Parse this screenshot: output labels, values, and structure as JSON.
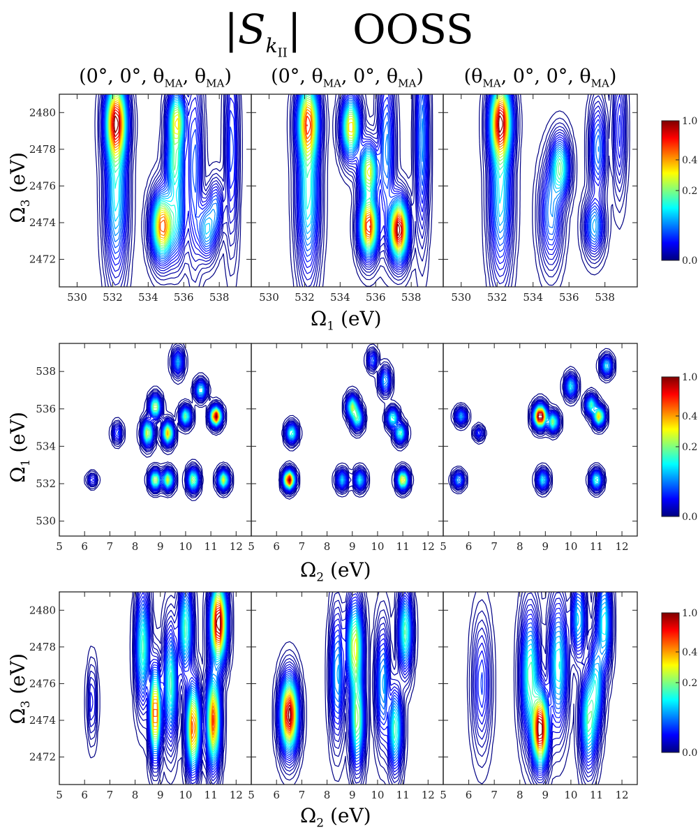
{
  "title": {
    "symbol": "S",
    "sub_k": "k",
    "sub_II": "II",
    "method": "OOSS"
  },
  "column_titles": [
    {
      "pre": "(0°, 0°, θ",
      "s1": "MA",
      "mid": ", θ",
      "s2": "MA",
      "post": ")"
    },
    {
      "pre": "(0°, θ",
      "s1": "MA",
      "mid": ", 0°, θ",
      "s2": "MA",
      "post": ")"
    },
    {
      "pre": "(θ",
      "s1": "MA",
      "mid": ", 0°, 0°, θ",
      "s2": "MA",
      "post": ")"
    }
  ],
  "axis_labels": {
    "row1_x": {
      "sym": "Ω",
      "sub": "1",
      "unit": " (eV)"
    },
    "row2_x": {
      "sym": "Ω",
      "sub": "2",
      "unit": " (eV)"
    },
    "row3_x": {
      "sym": "Ω",
      "sub": "2",
      "unit": " (eV)"
    },
    "row1_y": {
      "sym": "Ω",
      "sub": "3",
      "unit": " (eV)"
    },
    "row2_y": {
      "sym": "Ω",
      "sub": "1",
      "unit": " (eV)"
    },
    "row3_y": {
      "sym": "Ω",
      "sub": "3",
      "unit": " (eV)"
    }
  },
  "chart_data": {
    "type": "heatmap",
    "colormap": [
      "#00007f",
      "#0000ff",
      "#007fff",
      "#00ffff",
      "#7fff7f",
      "#ffff00",
      "#ff7f00",
      "#ff0000",
      "#7f0000"
    ],
    "colorbar_ticks": [
      "1.0",
      "0.4",
      "0.2",
      "0.0"
    ],
    "colorbar_tick_values": [
      1.0,
      0.4,
      0.2,
      0.0
    ],
    "rows": [
      {
        "xlabel": "Ω1 (eV)",
        "ylabel": "Ω3 (eV)",
        "xlim": [
          529,
          539.8
        ],
        "ylim": [
          2470.5,
          2481
        ],
        "xticks": [
          530,
          532,
          534,
          536,
          538
        ],
        "yticks": [
          2472,
          2474,
          2476,
          2478,
          2480
        ],
        "panels": [
          {
            "peaks": [
              [
                532.2,
                2479.5,
                0.85,
                0.35,
                1.3
              ],
              [
                532.2,
                2475.5,
                0.35,
                0.35,
                2.5
              ],
              [
                535.6,
                2479.5,
                0.6,
                0.28,
                1.0
              ],
              [
                535.5,
                2477.2,
                0.35,
                0.3,
                1.0
              ],
              [
                534.8,
                2473.8,
                0.75,
                0.35,
                1.1
              ],
              [
                535.6,
                2474.5,
                0.3,
                0.3,
                1.5
              ],
              [
                537.3,
                2473.6,
                0.3,
                0.3,
                0.9
              ],
              [
                537.8,
                2474.8,
                0.2,
                0.25,
                0.9
              ],
              [
                536.6,
                2477,
                0.2,
                0.25,
                3.0
              ],
              [
                538.7,
                2478,
                0.18,
                0.2,
                3.0
              ]
            ]
          },
          {
            "peaks": [
              [
                532.2,
                2479.5,
                0.55,
                0.35,
                1.3
              ],
              [
                532.2,
                2475.5,
                0.3,
                0.35,
                2.5
              ],
              [
                534.6,
                2479.2,
                0.5,
                0.3,
                1.0
              ],
              [
                535.6,
                2476.8,
                0.45,
                0.3,
                0.9
              ],
              [
                535.6,
                2473.8,
                0.65,
                0.3,
                1.0
              ],
              [
                537.3,
                2473.6,
                0.75,
                0.3,
                1.0
              ],
              [
                536.6,
                2478,
                0.2,
                0.25,
                2.5
              ],
              [
                538.6,
                2478.5,
                0.2,
                0.2,
                3.0
              ]
            ]
          },
          {
            "peaks": [
              [
                532.2,
                2479.5,
                0.9,
                0.35,
                1.3
              ],
              [
                532.2,
                2475.5,
                0.35,
                0.35,
                2.5
              ],
              [
                535.5,
                2477,
                0.45,
                0.3,
                1.0
              ],
              [
                535,
                2474.5,
                0.25,
                0.35,
                1.6
              ],
              [
                537.4,
                2473.8,
                0.3,
                0.3,
                0.9
              ],
              [
                537.6,
                2478,
                0.25,
                0.25,
                1.5
              ],
              [
                538.8,
                2479,
                0.15,
                0.2,
                2.0
              ]
            ]
          }
        ]
      },
      {
        "xlabel": "Ω2 (eV)",
        "ylabel": "Ω1 (eV)",
        "xlim": [
          5,
          12.6
        ],
        "ylim": [
          529.2,
          539.5
        ],
        "xticks": [
          5,
          6,
          7,
          8,
          9,
          10,
          11,
          12
        ],
        "yticks": [
          530,
          532,
          534,
          536,
          538
        ],
        "panels": [
          {
            "peaks": [
              [
                8.8,
                536.1,
                0.3,
                0.12,
                0.35
              ],
              [
                8.5,
                534.7,
                0.3,
                0.12,
                0.4
              ],
              [
                9.3,
                534.7,
                0.35,
                0.12,
                0.35
              ],
              [
                11.2,
                535.6,
                0.5,
                0.12,
                0.3
              ],
              [
                8.8,
                532.2,
                0.3,
                0.12,
                0.3
              ],
              [
                9.3,
                532.2,
                0.3,
                0.12,
                0.3
              ],
              [
                10.3,
                532.2,
                0.28,
                0.12,
                0.35
              ],
              [
                11.5,
                532.2,
                0.3,
                0.12,
                0.3
              ],
              [
                10,
                535.6,
                0.25,
                0.12,
                0.3
              ],
              [
                10.6,
                537,
                0.2,
                0.12,
                0.3
              ],
              [
                9.7,
                538.5,
                0.15,
                0.12,
                0.4
              ],
              [
                6.3,
                532.2,
                0.08,
                0.1,
                0.2
              ],
              [
                7.3,
                534.7,
                0.1,
                0.1,
                0.3
              ]
            ]
          },
          {
            "peaks": [
              [
                6.5,
                532.2,
                0.65,
                0.12,
                0.3
              ],
              [
                6.6,
                534.7,
                0.3,
                0.12,
                0.3
              ],
              [
                9.0,
                536.1,
                0.35,
                0.12,
                0.35
              ],
              [
                9.2,
                535.5,
                0.3,
                0.12,
                0.35
              ],
              [
                10.6,
                535.5,
                0.3,
                0.12,
                0.3
              ],
              [
                11.0,
                532.2,
                0.45,
                0.12,
                0.3
              ],
              [
                9.3,
                532.2,
                0.25,
                0.12,
                0.3
              ],
              [
                8.6,
                532.2,
                0.22,
                0.12,
                0.3
              ],
              [
                10.9,
                534.7,
                0.3,
                0.12,
                0.3
              ],
              [
                10.3,
                537.5,
                0.2,
                0.12,
                0.4
              ],
              [
                9.8,
                538.6,
                0.15,
                0.1,
                0.3
              ]
            ]
          },
          {
            "peaks": [
              [
                8.8,
                535.6,
                0.75,
                0.14,
                0.35
              ],
              [
                9.3,
                535.3,
                0.35,
                0.12,
                0.3
              ],
              [
                11.1,
                535.6,
                0.45,
                0.12,
                0.3
              ],
              [
                10.8,
                536.2,
                0.3,
                0.12,
                0.3
              ],
              [
                11.0,
                532.2,
                0.3,
                0.12,
                0.3
              ],
              [
                8.9,
                532.2,
                0.25,
                0.12,
                0.3
              ],
              [
                5.7,
                535.6,
                0.2,
                0.12,
                0.25
              ],
              [
                5.6,
                532.2,
                0.2,
                0.12,
                0.25
              ],
              [
                10.0,
                537.2,
                0.25,
                0.12,
                0.35
              ],
              [
                11.4,
                538.3,
                0.25,
                0.12,
                0.3
              ],
              [
                6.4,
                534.7,
                0.12,
                0.1,
                0.2
              ]
            ]
          }
        ]
      },
      {
        "xlabel": "Ω2 (eV)",
        "ylabel": "Ω3 (eV)",
        "xlim": [
          5,
          12.6
        ],
        "ylim": [
          2470.5,
          2481
        ],
        "xticks": [
          5,
          6,
          7,
          8,
          9,
          10,
          11,
          12
        ],
        "yticks": [
          2472,
          2474,
          2476,
          2478,
          2480
        ],
        "panels": [
          {
            "peaks": [
              [
                8.8,
                2474.4,
                0.6,
                0.12,
                1.4
              ],
              [
                10.3,
                2473.6,
                0.55,
                0.15,
                1.4
              ],
              [
                11.3,
                2479.3,
                0.7,
                0.18,
                1.3
              ],
              [
                11.1,
                2474,
                0.55,
                0.15,
                1.5
              ],
              [
                9.4,
                2476,
                0.3,
                0.15,
                1.8
              ],
              [
                8.3,
                2478,
                0.3,
                0.15,
                1.8
              ],
              [
                10,
                2479,
                0.3,
                0.15,
                1.5
              ],
              [
                6.3,
                2475,
                0.08,
                0.1,
                1.2
              ]
            ]
          },
          {
            "peaks": [
              [
                6.5,
                2474.3,
                0.65,
                0.2,
                1.2
              ],
              [
                9.1,
                2478,
                0.4,
                0.18,
                1.5
              ],
              [
                9.2,
                2474,
                0.35,
                0.15,
                1.5
              ],
              [
                10.7,
                2473.5,
                0.3,
                0.15,
                1.3
              ],
              [
                11.1,
                2478.8,
                0.3,
                0.15,
                1.3
              ],
              [
                10.2,
                2476,
                0.2,
                0.15,
                1.8
              ],
              [
                8.4,
                2476.5,
                0.2,
                0.15,
                2.0
              ]
            ]
          },
          {
            "peaks": [
              [
                8.8,
                2473.5,
                0.9,
                0.18,
                1.2
              ],
              [
                8.4,
                2476.5,
                0.4,
                0.2,
                2.0
              ],
              [
                9.5,
                2477,
                0.35,
                0.2,
                2.0
              ],
              [
                10.7,
                2474,
                0.4,
                0.18,
                1.5
              ],
              [
                11.3,
                2479.3,
                0.35,
                0.15,
                1.5
              ],
              [
                11.0,
                2476,
                0.3,
                0.15,
                1.5
              ],
              [
                6.5,
                2476,
                0.15,
                0.2,
                2.0
              ],
              [
                10.3,
                2479.5,
                0.3,
                0.15,
                1.2
              ]
            ]
          }
        ]
      }
    ]
  }
}
